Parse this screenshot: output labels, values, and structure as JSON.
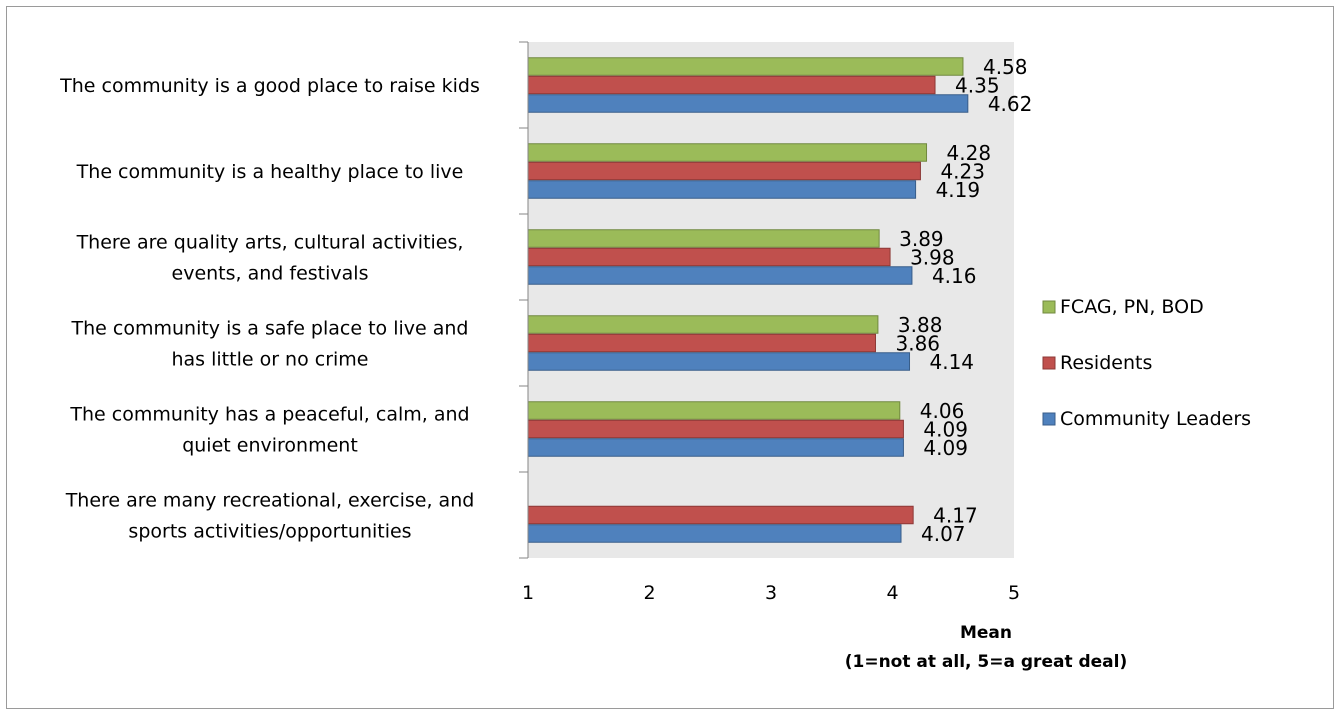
{
  "chart_data": {
    "type": "bar",
    "orientation": "horizontal",
    "categories": [
      [
        "The community is a good place to raise kids"
      ],
      [
        "The community is a healthy place to live"
      ],
      [
        "There are quality arts, cultural activities,",
        "events, and festivals"
      ],
      [
        "The community is a safe place to live and",
        "has little or no crime"
      ],
      [
        "The community has a peaceful, calm, and",
        "quiet environment"
      ],
      [
        "There are many recreational, exercise, and",
        "sports activities/opportunities"
      ]
    ],
    "series": [
      {
        "name": "FCAG, PN, BOD",
        "color": "#9bbb59",
        "stroke": "#71893f",
        "values": [
          4.58,
          4.28,
          3.89,
          3.88,
          4.06,
          null
        ]
      },
      {
        "name": "Residents",
        "color": "#c0504d",
        "stroke": "#8c3836",
        "values": [
          4.35,
          4.23,
          3.98,
          3.86,
          4.09,
          4.17
        ]
      },
      {
        "name": "Community Leaders",
        "color": "#4f81bd",
        "stroke": "#385d8a",
        "values": [
          4.62,
          4.19,
          4.16,
          4.14,
          4.09,
          4.07
        ]
      }
    ],
    "value_labels": [
      [
        "4.58",
        "4.35",
        "4.62"
      ],
      [
        "4.28",
        "4.23",
        "4.19"
      ],
      [
        "3.89",
        "3.98",
        "4.16"
      ],
      [
        "3.88",
        "3.86",
        "4.14"
      ],
      [
        "4.06",
        "4.09",
        "4.09"
      ],
      [
        "",
        "4.17",
        "4.07"
      ]
    ],
    "xlim": [
      1,
      5
    ],
    "xticks": [
      "1",
      "2",
      "3",
      "4",
      "5"
    ],
    "xlabel": [
      "Mean",
      "(1=not at all, 5=a great deal)"
    ],
    "title": "",
    "legend_position": "right",
    "legend_order": [
      0,
      1,
      2
    ],
    "plot_background": "#e8e8e8",
    "grid": false
  }
}
